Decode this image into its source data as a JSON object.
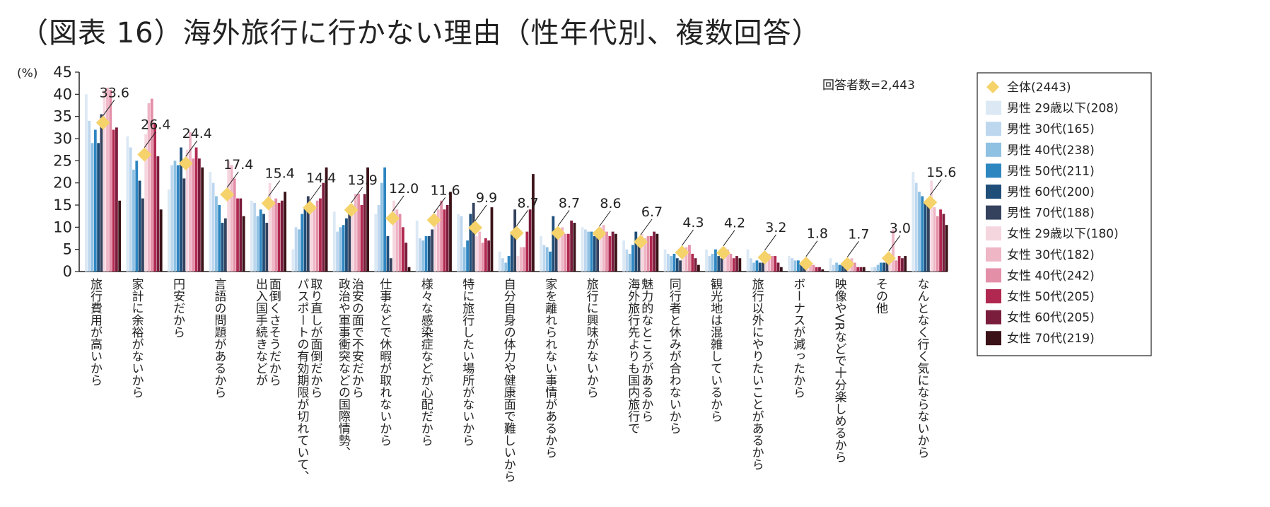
{
  "title": "（図表 16）海外旅行に行かない理由（性年代別、複数回答）",
  "respondents_note": "回答者数=2,443",
  "chart_data": {
    "type": "bar",
    "y_unit_label": "(%)",
    "ylim": [
      0,
      45
    ],
    "yticks": [
      "0",
      "5",
      "10",
      "15",
      "20",
      "25",
      "30",
      "35",
      "40",
      "45"
    ],
    "grid": false,
    "legend_placement": "right",
    "categories": [
      "旅行費用が高いから",
      "家計に余裕がないから",
      "円安だから",
      "言語の問題があるから",
      "出入国手続きなどが\n面倒くさそうだから",
      "パスポートの有効期限が切れていて、\n取り直しが面倒だから",
      "政治や軍事衝突などの国際情勢、\n治安の面で不安だから",
      "仕事などで休暇が取れないから",
      "様々な感染症などが心配だから",
      "特に旅行したい場所がないから",
      "自分自身の体力や健康面で難しいから",
      "家を離れられない事情があるから",
      "旅行に興味がないから",
      "海外旅行先よりも国内旅行で\n魅力的なところがあるから",
      "同行者と休みが合わないから",
      "観光地は混雑しているから",
      "旅行以外にやりたいことがあるから",
      "ボーナスが減ったから",
      "映像やVRなどで十分楽しめるから",
      "その他",
      "なんとなく行く気にならないから"
    ],
    "total_series": {
      "name": "全体(2443)",
      "color": "#f5d36a",
      "values": [
        33.6,
        26.4,
        24.4,
        17.4,
        15.4,
        14.4,
        13.9,
        12.0,
        11.6,
        9.9,
        8.7,
        8.7,
        8.6,
        6.7,
        4.3,
        4.2,
        3.2,
        1.8,
        1.7,
        3.0,
        15.6
      ],
      "data_labels": [
        "33.6",
        "26.4",
        "24.4",
        "17.4",
        "15.4",
        "14.4",
        "13.9",
        "12.0",
        "11.6",
        "9.9",
        "8.7",
        "8.7",
        "8.6",
        "6.7",
        "4.3",
        "4.2",
        "3.2",
        "1.8",
        "1.7",
        "3.0",
        "15.6"
      ]
    },
    "series": [
      {
        "name": "男性 29歳以下(208)",
        "color": "#dce9f5",
        "values": [
          40.0,
          30.5,
          18.5,
          22.5,
          16.0,
          5.0,
          13.5,
          13.0,
          11.5,
          13.0,
          4.5,
          8.0,
          10.0,
          7.0,
          5.0,
          5.0,
          5.0,
          3.5,
          3.0,
          1.0,
          22.5
        ]
      },
      {
        "name": "男性 30代(165)",
        "color": "#bdd7ee",
        "values": [
          34.0,
          28.0,
          24.0,
          20.0,
          15.5,
          10.0,
          9.0,
          15.0,
          7.5,
          12.5,
          3.0,
          6.0,
          9.5,
          5.0,
          4.0,
          3.5,
          3.0,
          3.0,
          1.5,
          1.0,
          20.0
        ]
      },
      {
        "name": "男性 40代(238)",
        "color": "#8fc1e3",
        "values": [
          29.0,
          23.0,
          25.0,
          17.0,
          12.5,
          9.5,
          10.0,
          20.0,
          7.0,
          5.5,
          2.0,
          5.5,
          9.0,
          4.0,
          3.5,
          4.0,
          2.0,
          2.5,
          2.0,
          1.5,
          18.0
        ]
      },
      {
        "name": "男性 50代(211)",
        "color": "#2e86c1",
        "values": [
          32.0,
          25.0,
          24.0,
          15.0,
          14.0,
          13.0,
          10.5,
          23.5,
          8.0,
          7.0,
          3.5,
          4.5,
          9.0,
          6.0,
          4.0,
          5.0,
          2.5,
          2.5,
          1.5,
          2.0,
          17.0
        ]
      },
      {
        "name": "男性 60代(200)",
        "color": "#1f4e79",
        "values": [
          29.0,
          20.5,
          28.0,
          11.0,
          13.0,
          14.5,
          12.0,
          8.0,
          8.0,
          13.0,
          9.0,
          12.5,
          8.0,
          9.0,
          3.0,
          3.5,
          2.0,
          2.0,
          1.5,
          2.0,
          15.5
        ]
      },
      {
        "name": "男性 70代(188)",
        "color": "#34425e",
        "values": [
          35.5,
          16.5,
          21.0,
          12.0,
          11.0,
          17.0,
          14.0,
          3.0,
          9.5,
          15.5,
          14.0,
          9.0,
          8.5,
          6.5,
          2.5,
          3.0,
          2.0,
          1.5,
          1.5,
          2.5,
          16.0
        ]
      },
      {
        "name": "女性 29歳以下(180)",
        "color": "#f5d6df",
        "values": [
          41.0,
          31.0,
          27.5,
          25.0,
          20.0,
          14.0,
          14.5,
          16.0,
          13.0,
          8.0,
          3.5,
          8.0,
          10.0,
          8.5,
          5.0,
          5.5,
          4.0,
          2.0,
          2.5,
          3.0,
          20.5
        ]
      },
      {
        "name": "女性 30代(182)",
        "color": "#efb6c6",
        "values": [
          41.5,
          38.0,
          31.5,
          24.0,
          16.0,
          14.5,
          17.5,
          14.0,
          14.0,
          9.0,
          5.5,
          10.0,
          10.5,
          7.5,
          5.5,
          5.0,
          4.0,
          2.0,
          3.0,
          9.5,
          14.5
        ]
      },
      {
        "name": "女性 40代(242)",
        "color": "#e48fa8",
        "values": [
          41.0,
          39.0,
          25.5,
          21.0,
          16.5,
          16.0,
          17.5,
          13.0,
          16.0,
          6.5,
          5.5,
          8.5,
          9.0,
          8.0,
          6.0,
          4.0,
          3.5,
          1.5,
          2.0,
          2.5,
          12.5
        ]
      },
      {
        "name": "女性 50代(205)",
        "color": "#b0284f",
        "values": [
          32.0,
          33.5,
          28.0,
          16.5,
          15.5,
          16.5,
          15.0,
          10.0,
          14.0,
          7.5,
          9.0,
          8.5,
          8.0,
          8.0,
          4.0,
          3.0,
          3.5,
          1.0,
          1.0,
          3.5,
          14.0
        ]
      },
      {
        "name": "女性 60代(205)",
        "color": "#7a1c3c",
        "values": [
          32.5,
          26.0,
          25.5,
          16.5,
          16.0,
          20.0,
          17.5,
          6.5,
          15.0,
          7.0,
          14.0,
          11.5,
          9.0,
          9.0,
          3.0,
          3.5,
          2.0,
          1.0,
          1.0,
          3.0,
          13.0
        ]
      },
      {
        "name": "女性 70代(219)",
        "color": "#3a1218",
        "values": [
          16.0,
          14.0,
          23.5,
          12.5,
          18.0,
          23.5,
          23.5,
          1.0,
          18.0,
          14.5,
          22.0,
          11.0,
          8.5,
          8.5,
          1.5,
          3.0,
          1.0,
          0.5,
          1.0,
          3.5,
          10.5
        ]
      }
    ]
  }
}
